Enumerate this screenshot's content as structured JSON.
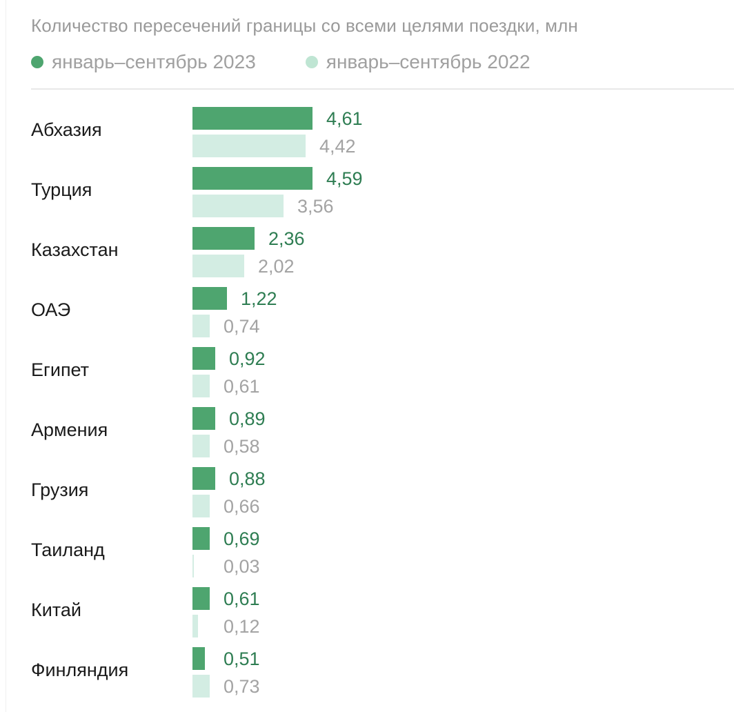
{
  "chart_data": {
    "type": "bar",
    "orientation": "horizontal",
    "title": "Количество пересечений границы со всеми целями поездки, млн",
    "xlabel": "",
    "ylabel": "",
    "grid": false,
    "legend_position": "top",
    "categories": [
      "Абхазия",
      "Турция",
      "Казахстан",
      "ОАЭ",
      "Египет",
      "Армения",
      "Грузия",
      "Таиланд",
      "Китай",
      "Финляндия"
    ],
    "series": [
      {
        "name": "январь–сентябрь 2023",
        "color": "#4ea56f",
        "values": [
          4.61,
          4.59,
          2.36,
          1.22,
          0.92,
          0.89,
          0.88,
          0.69,
          0.61,
          0.51
        ],
        "labels": [
          "4,61",
          "4,59",
          "2,36",
          "1,22",
          "0,92",
          "0,89",
          "0,88",
          "0,69",
          "0,61",
          "0,51"
        ]
      },
      {
        "name": "январь–сентябрь 2022",
        "color": "#d3ede3",
        "values": [
          4.42,
          3.56,
          2.02,
          0.74,
          0.61,
          0.58,
          0.66,
          0.03,
          0.12,
          0.73
        ],
        "labels": [
          "4,42",
          "3,56",
          "2,02",
          "0,74",
          "0,61",
          "0,58",
          "0,66",
          "0,03",
          "0,12",
          "0,73"
        ]
      }
    ]
  },
  "header": {
    "title": "Количество пересечений границы со всеми целями поездки, млн"
  },
  "legend": [
    {
      "label": "январь–сентябрь 2023",
      "color": "#4ea56f"
    },
    {
      "label": "январь–сентябрь 2022",
      "color": "#bfe5d3"
    }
  ],
  "colors": {
    "current_bar": "#4ea56f",
    "previous_bar": "#d3ede3",
    "current_text": "#2e7d52",
    "previous_text": "#a3a3a3"
  },
  "rows": [
    {
      "country": "Абхазия",
      "cur": "4,61",
      "prev": "4,42",
      "cur_w": 174,
      "prev_w": 164
    },
    {
      "country": "Турция",
      "cur": "4,59",
      "prev": "3,56",
      "cur_w": 174,
      "prev_w": 132
    },
    {
      "country": "Казахстан",
      "cur": "2,36",
      "prev": "2,02",
      "cur_w": 90,
      "prev_w": 75
    },
    {
      "country": "ОАЭ",
      "cur": "1,22",
      "prev": "0,74",
      "cur_w": 50,
      "prev_w": 25
    },
    {
      "country": "Египет",
      "cur": "0,92",
      "prev": "0,61",
      "cur_w": 33,
      "prev_w": 25
    },
    {
      "country": "Армения",
      "cur": "0,89",
      "prev": "0,58",
      "cur_w": 33,
      "prev_w": 25
    },
    {
      "country": "Грузия",
      "cur": "0,88",
      "prev": "0,66",
      "cur_w": 33,
      "prev_w": 25
    },
    {
      "country": "Таиланд",
      "cur": "0,69",
      "prev": "0,03",
      "cur_w": 25,
      "prev_w": 2
    },
    {
      "country": "Китай",
      "cur": "0,61",
      "prev": "0,12",
      "cur_w": 25,
      "prev_w": 8
    },
    {
      "country": "Финляндия",
      "cur": "0,51",
      "prev": "0,73",
      "cur_w": 18,
      "prev_w": 25
    }
  ]
}
